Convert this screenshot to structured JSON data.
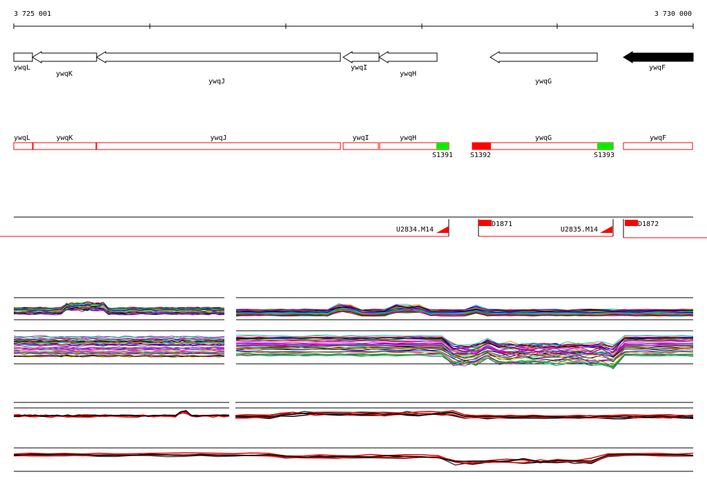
{
  "coordinate_axis": {
    "start_label": "3 725 001",
    "end_label": "3 730 000"
  },
  "genes": [
    {
      "name": "ywqL",
      "strand": "-",
      "filled": false
    },
    {
      "name": "ywqK",
      "strand": "-",
      "filled": false
    },
    {
      "name": "ywqJ",
      "strand": "-",
      "filled": false
    },
    {
      "name": "ywqI",
      "strand": "-",
      "filled": false
    },
    {
      "name": "ywqH",
      "strand": "-",
      "filled": false
    },
    {
      "name": "ywqG",
      "strand": "-",
      "filled": false
    },
    {
      "name": "ywqF",
      "strand": "-",
      "filled": true
    }
  ],
  "annotation_track": {
    "segments": [
      "ywqL",
      "ywqK",
      "ywqJ",
      "ywqI",
      "ywqH",
      "ywqG",
      "ywqF"
    ],
    "sites": [
      {
        "label": "S1391",
        "color": "#00ee00"
      },
      {
        "label": "S1392",
        "color": "#ff0000"
      },
      {
        "label": "S1393",
        "color": "#00ee00"
      }
    ]
  },
  "transcript_track": {
    "upstream_labels": [
      "U2834.M14",
      "U2835.M14"
    ],
    "downstream_labels": [
      "D1871",
      "D1872"
    ],
    "color": "#ff0000"
  },
  "colors": {
    "outline": "#000000",
    "annotation": "#ff0000",
    "site_green": "#00ee00",
    "profile_palette": [
      "#ff00ff",
      "#00cccc",
      "#009900",
      "#cccc00",
      "#0000ff",
      "#ff8800",
      "#8800cc",
      "#990000",
      "#000000",
      "#00aa66",
      "#666666",
      "#cc0066"
    ]
  }
}
